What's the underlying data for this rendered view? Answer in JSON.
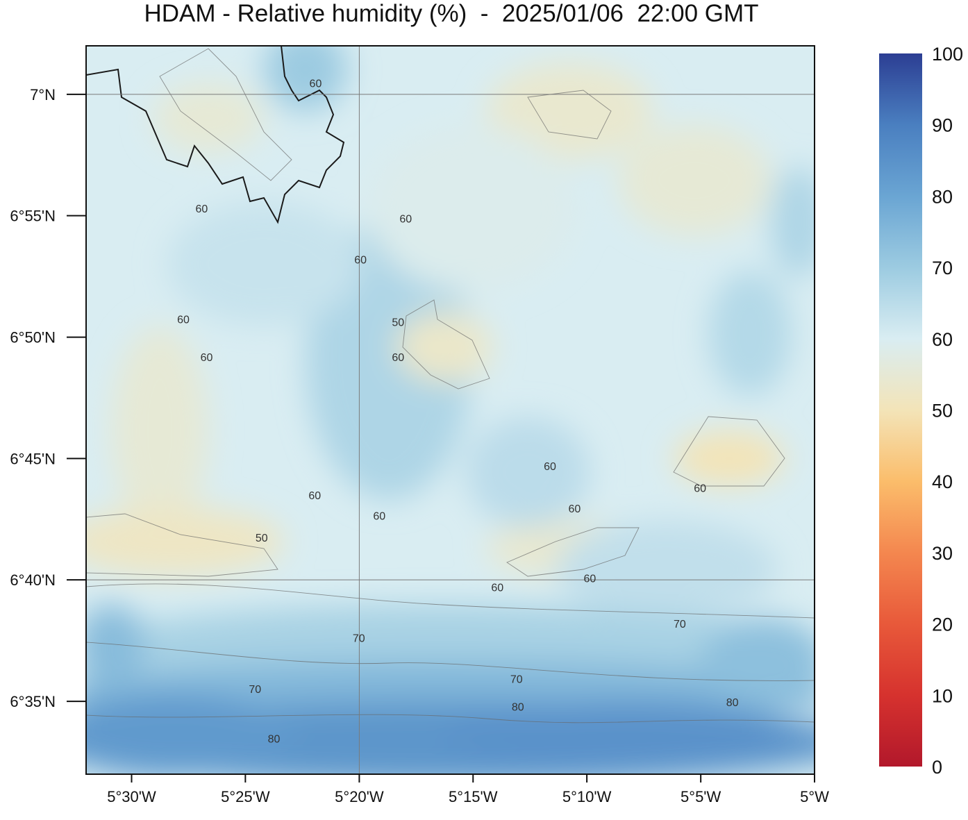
{
  "title": "HDAM - Relative humidity (%)  -  2025/01/06  22:00 GMT",
  "map": {
    "lon_range": [
      -5.5333,
      -5.0
    ],
    "lat_range": [
      6.5333,
      7.0333
    ],
    "x_ticks": [
      {
        "lon": -5.5,
        "label": "5°30'W"
      },
      {
        "lon": -5.4167,
        "label": "5°25'W"
      },
      {
        "lon": -5.3333,
        "label": "5°20'W"
      },
      {
        "lon": -5.25,
        "label": "5°15'W"
      },
      {
        "lon": -5.1667,
        "label": "5°10'W"
      },
      {
        "lon": -5.0833,
        "label": "5°5'W"
      },
      {
        "lon": -5.0,
        "label": "5°W"
      }
    ],
    "y_ticks": [
      {
        "lat": 7.0,
        "label": "7°N"
      },
      {
        "lat": 6.9167,
        "label": "6°55'N"
      },
      {
        "lat": 6.8333,
        "label": "6°50'N"
      },
      {
        "lat": 6.75,
        "label": "6°45'N"
      },
      {
        "lat": 6.6667,
        "label": "6°40'N"
      },
      {
        "lat": 6.5833,
        "label": "6°35'N"
      }
    ],
    "gridlines": {
      "lon": [
        -5.3333
      ],
      "lat": [
        7.0,
        6.6667
      ]
    },
    "contour_labels": [
      {
        "text": "60",
        "lon": -5.3653,
        "lat": 7.007
      },
      {
        "text": "60",
        "lon": -5.4487,
        "lat": 6.921
      },
      {
        "text": "60",
        "lon": -5.3324,
        "lat": 6.886
      },
      {
        "text": "60",
        "lon": -5.2993,
        "lat": 6.914
      },
      {
        "text": "60",
        "lon": -5.4621,
        "lat": 6.845
      },
      {
        "text": "60",
        "lon": -5.4451,
        "lat": 6.819
      },
      {
        "text": "50",
        "lon": -5.3049,
        "lat": 6.843
      },
      {
        "text": "60",
        "lon": -5.3049,
        "lat": 6.819
      },
      {
        "text": "60",
        "lon": -5.3659,
        "lat": 6.724
      },
      {
        "text": "60",
        "lon": -5.3186,
        "lat": 6.71
      },
      {
        "text": "50",
        "lon": -5.4048,
        "lat": 6.695
      },
      {
        "text": "60",
        "lon": -5.2322,
        "lat": 6.661
      },
      {
        "text": "60",
        "lon": -5.1937,
        "lat": 6.744
      },
      {
        "text": "60",
        "lon": -5.1757,
        "lat": 6.715
      },
      {
        "text": "60",
        "lon": -5.1645,
        "lat": 6.667
      },
      {
        "text": "60",
        "lon": -5.0838,
        "lat": 6.729
      },
      {
        "text": "70",
        "lon": -5.3336,
        "lat": 6.626
      },
      {
        "text": "70",
        "lon": -5.4096,
        "lat": 6.591
      },
      {
        "text": "70",
        "lon": -5.2182,
        "lat": 6.598
      },
      {
        "text": "70",
        "lon": -5.0987,
        "lat": 6.636
      },
      {
        "text": "80",
        "lon": -5.3958,
        "lat": 6.557
      },
      {
        "text": "80",
        "lon": -5.2172,
        "lat": 6.579
      },
      {
        "text": "80",
        "lon": -5.0602,
        "lat": 6.582
      }
    ]
  },
  "colorbar": {
    "min": 0,
    "max": 100,
    "ticks": [
      "100",
      "90",
      "80",
      "70",
      "60",
      "50",
      "40",
      "30",
      "20",
      "10",
      "0"
    ],
    "colors": [
      {
        "v": 0,
        "c": "#b2182b"
      },
      {
        "v": 10,
        "c": "#d6322e"
      },
      {
        "v": 20,
        "c": "#e8593a"
      },
      {
        "v": 30,
        "c": "#f4874f"
      },
      {
        "v": 40,
        "c": "#fbbd6b"
      },
      {
        "v": 50,
        "c": "#f3e4b8"
      },
      {
        "v": 60,
        "c": "#d9edf2"
      },
      {
        "v": 70,
        "c": "#9ccbe1"
      },
      {
        "v": 80,
        "c": "#6aa5d3"
      },
      {
        "v": 90,
        "c": "#4a7fc0"
      },
      {
        "v": 100,
        "c": "#2c3e93"
      }
    ]
  }
}
